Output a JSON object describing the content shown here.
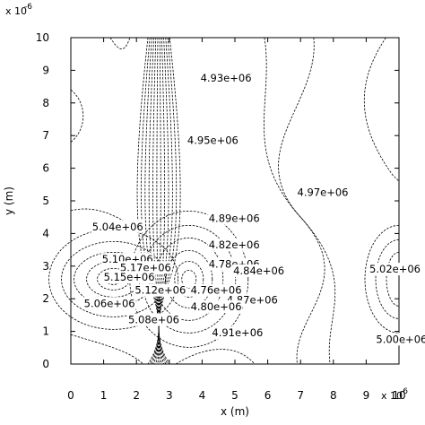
{
  "chart_data": {
    "type": "contour",
    "xlabel": "x (m)",
    "ylabel": "y (m)",
    "x_exponent": "x 10",
    "x_exponent_power": "-6",
    "y_exponent": "x 10",
    "y_exponent_power": "-6",
    "xlim": [
      0,
      10
    ],
    "ylim": [
      0,
      10
    ],
    "xticks": [
      "0",
      "1",
      "2",
      "3",
      "4",
      "5",
      "6",
      "7",
      "8",
      "9",
      "10"
    ],
    "yticks": [
      "0",
      "1",
      "2",
      "3",
      "4",
      "5",
      "6",
      "7",
      "8",
      "9",
      "10"
    ],
    "grid": false,
    "contour_labels": [
      {
        "text": "4.93e+06",
        "x": 3.95,
        "y": 8.65
      },
      {
        "text": "4.95e+06",
        "x": 3.55,
        "y": 6.75
      },
      {
        "text": "4.97e+06",
        "x": 6.9,
        "y": 5.15
      },
      {
        "text": "4.89e+06",
        "x": 4.2,
        "y": 4.35
      },
      {
        "text": "5.04e+06",
        "x": 0.65,
        "y": 4.1
      },
      {
        "text": "4.82e+06",
        "x": 4.2,
        "y": 3.55
      },
      {
        "text": "5.10e+06",
        "x": 0.95,
        "y": 3.1
      },
      {
        "text": "4.78e+06",
        "x": 4.2,
        "y": 2.95
      },
      {
        "text": "5.17e+06",
        "x": 1.5,
        "y": 2.85
      },
      {
        "text": "4.84e+06",
        "x": 4.95,
        "y": 2.75
      },
      {
        "text": "5.02e+06",
        "x": 9.1,
        "y": 2.8
      },
      {
        "text": "5.15e+06",
        "x": 1.0,
        "y": 2.55
      },
      {
        "text": "5.12e+06",
        "x": 1.95,
        "y": 2.15
      },
      {
        "text": "4.76e+06",
        "x": 3.65,
        "y": 2.15
      },
      {
        "text": "4.87e+06",
        "x": 4.75,
        "y": 1.85
      },
      {
        "text": "5.06e+06",
        "x": 0.4,
        "y": 1.75
      },
      {
        "text": "4.80e+06",
        "x": 3.65,
        "y": 1.65
      },
      {
        "text": "5.08e+06",
        "x": 1.75,
        "y": 1.25
      },
      {
        "text": "4.91e+06",
        "x": 4.3,
        "y": 0.85
      },
      {
        "text": "5.00e+06",
        "x": 9.3,
        "y": 0.65
      }
    ],
    "minimum_center": {
      "x": 3.6,
      "y": 2.6
    },
    "maximum_center": {
      "x": 1.3,
      "y": 2.6
    },
    "secondary_maximum_center": {
      "x": 10.0,
      "y": 2.6
    }
  }
}
